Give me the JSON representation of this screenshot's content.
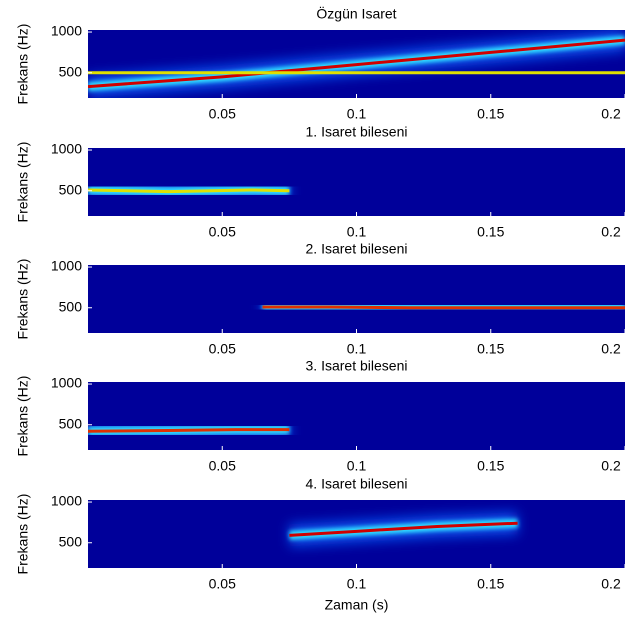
{
  "chart_data": [
    {
      "type": "spectrogram",
      "title": "Özgün Isaret",
      "ylabel": "Frekans (Hz)",
      "xlim": [
        0,
        0.2
      ],
      "xticks": [
        0.05,
        0.1,
        0.15,
        0.2
      ],
      "ylim": [
        190,
        1025
      ],
      "yticks": [
        500,
        1000
      ],
      "ridges": [
        {
          "color": "#d00000",
          "x": [
            0,
            0.05,
            0.1,
            0.15,
            0.2
          ],
          "values": [
            330,
            450,
            600,
            750,
            900
          ]
        },
        {
          "color": "#e0e000",
          "x": [
            0,
            0.2
          ],
          "values": [
            500,
            500
          ]
        }
      ]
    },
    {
      "type": "spectrogram",
      "title": "1. Isaret bileseni",
      "ylabel": "Frekans (Hz)",
      "xlim": [
        0,
        0.2
      ],
      "xticks": [
        0.05,
        0.1,
        0.15,
        0.2
      ],
      "ylim": [
        190,
        1025
      ],
      "yticks": [
        500,
        1000
      ],
      "ridges": [
        {
          "color": "#e0e000",
          "x": [
            0,
            0.03,
            0.06,
            0.075
          ],
          "values": [
            510,
            490,
            510,
            500
          ]
        }
      ]
    },
    {
      "type": "spectrogram",
      "title": "2. Isaret bileseni",
      "ylabel": "Frekans (Hz)",
      "xlim": [
        0,
        0.2
      ],
      "xticks": [
        0.05,
        0.1,
        0.15,
        0.2
      ],
      "ylim": [
        190,
        1025
      ],
      "yticks": [
        500,
        1000
      ],
      "ridges": [
        {
          "color": "#e03000",
          "x": [
            0.065,
            0.09,
            0.12,
            0.2
          ],
          "values": [
            510,
            510,
            500,
            500
          ]
        }
      ]
    },
    {
      "type": "spectrogram",
      "title": "3. Isaret bileseni",
      "ylabel": "Frekans (Hz)",
      "xlim": [
        0,
        0.2
      ],
      "xticks": [
        0.05,
        0.1,
        0.15,
        0.2
      ],
      "ylim": [
        190,
        1025
      ],
      "yticks": [
        500,
        1000
      ],
      "ridges": [
        {
          "color": "#e03000",
          "x": [
            0,
            0.03,
            0.055,
            0.075
          ],
          "values": [
            420,
            430,
            440,
            440
          ]
        }
      ]
    },
    {
      "type": "spectrogram",
      "title": "4. Isaret bileseni",
      "ylabel": "Frekans (Hz)",
      "xlabel": "Zaman (s)",
      "xlim": [
        0,
        0.2
      ],
      "xticks": [
        0.05,
        0.1,
        0.15,
        0.2
      ],
      "ylim": [
        190,
        1025
      ],
      "yticks": [
        500,
        1000
      ],
      "ridges": [
        {
          "color": "#d00000",
          "x": [
            0.075,
            0.1,
            0.13,
            0.16
          ],
          "values": [
            590,
            640,
            700,
            740
          ]
        }
      ]
    }
  ]
}
